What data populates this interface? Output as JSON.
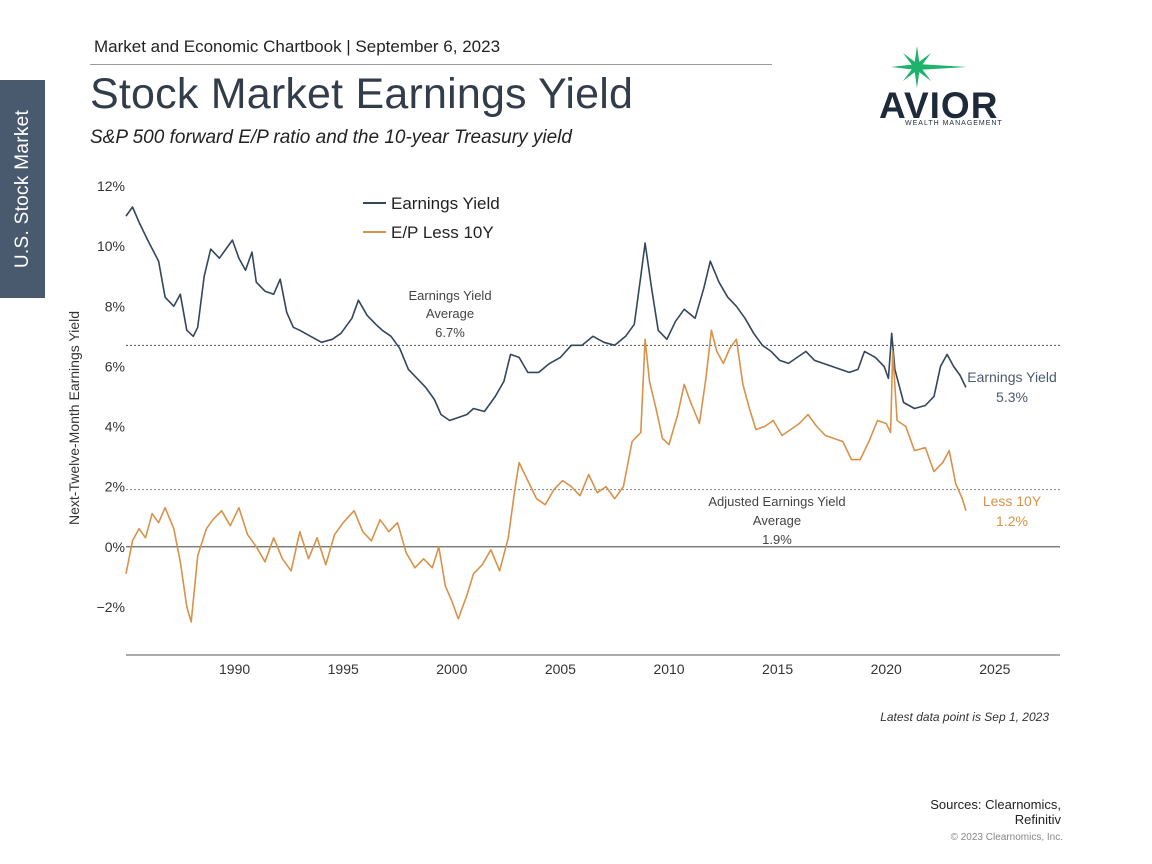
{
  "side_tab": "U.S. Stock Market",
  "header": "Market and Economic Chartbook | September 6, 2023",
  "title": "Stock Market Earnings Yield",
  "subtitle": "S&P 500 forward E/P ratio and the 10-year Treasury yield",
  "logo": {
    "word": "AVIOR",
    "sub": "WEALTH MANAGEMENT",
    "star_color": "#1db36a",
    "text_color": "#1e2a3a"
  },
  "colors": {
    "earnings_yield": "#34465a",
    "ep_less_10y": "#d8924a",
    "axis": "#555555"
  },
  "chart_data": {
    "type": "line",
    "ylabel": "Next-Twelve-Month Earnings Yield",
    "xlim": [
      1985,
      2028
    ],
    "ylim": [
      -3.6,
      12
    ],
    "x_ticks": [
      1990,
      1995,
      2000,
      2005,
      2010,
      2015,
      2020,
      2025
    ],
    "y_ticks": [
      {
        "value": 12,
        "label": "12%"
      },
      {
        "value": 10,
        "label": "10%"
      },
      {
        "value": 8,
        "label": "8%"
      },
      {
        "value": 6,
        "label": "6%"
      },
      {
        "value": 4,
        "label": "4%"
      },
      {
        "value": 2,
        "label": "2%"
      },
      {
        "value": 0,
        "label": "0%"
      },
      {
        "value": -2,
        "label": "−2%"
      }
    ],
    "legend": {
      "position": "top-left",
      "items": [
        "Earnings Yield",
        "E/P Less 10Y"
      ]
    },
    "reference_lines": [
      {
        "value": 6.7,
        "label_lines": [
          "Earnings Yield",
          "Average",
          "6.7%"
        ],
        "color": "#555555"
      },
      {
        "value": 1.9,
        "label_lines": [
          "Adjusted Earnings Yield",
          "Average",
          "1.9%"
        ],
        "color": "#888888"
      }
    ],
    "series": [
      {
        "name": "Earnings Yield",
        "end_label": [
          "Earnings Yield",
          "5.3%"
        ],
        "points": [
          [
            1985.0,
            11.0
          ],
          [
            1985.3,
            11.3
          ],
          [
            1985.6,
            10.8
          ],
          [
            1986.0,
            10.2
          ],
          [
            1986.5,
            9.5
          ],
          [
            1986.8,
            8.3
          ],
          [
            1987.2,
            8.0
          ],
          [
            1987.5,
            8.4
          ],
          [
            1987.8,
            7.2
          ],
          [
            1988.1,
            7.0
          ],
          [
            1988.3,
            7.3
          ],
          [
            1988.6,
            9.0
          ],
          [
            1988.9,
            9.9
          ],
          [
            1989.3,
            9.6
          ],
          [
            1989.6,
            9.9
          ],
          [
            1989.9,
            10.2
          ],
          [
            1990.2,
            9.6
          ],
          [
            1990.5,
            9.2
          ],
          [
            1990.8,
            9.8
          ],
          [
            1991.0,
            8.8
          ],
          [
            1991.4,
            8.5
          ],
          [
            1991.8,
            8.4
          ],
          [
            1992.1,
            8.9
          ],
          [
            1992.4,
            7.8
          ],
          [
            1992.7,
            7.3
          ],
          [
            1993.0,
            7.2
          ],
          [
            1993.5,
            7.0
          ],
          [
            1994.0,
            6.8
          ],
          [
            1994.5,
            6.9
          ],
          [
            1994.9,
            7.1
          ],
          [
            1995.4,
            7.6
          ],
          [
            1995.7,
            8.2
          ],
          [
            1996.1,
            7.7
          ],
          [
            1996.5,
            7.4
          ],
          [
            1996.8,
            7.2
          ],
          [
            1997.2,
            7.0
          ],
          [
            1997.6,
            6.6
          ],
          [
            1998.0,
            5.9
          ],
          [
            1998.4,
            5.6
          ],
          [
            1998.8,
            5.3
          ],
          [
            1999.2,
            4.9
          ],
          [
            1999.5,
            4.4
          ],
          [
            1999.9,
            4.2
          ],
          [
            2000.3,
            4.3
          ],
          [
            2000.7,
            4.4
          ],
          [
            2001.0,
            4.6
          ],
          [
            2001.5,
            4.5
          ],
          [
            2002.0,
            5.0
          ],
          [
            2002.4,
            5.5
          ],
          [
            2002.7,
            6.4
          ],
          [
            2003.1,
            6.3
          ],
          [
            2003.5,
            5.8
          ],
          [
            2004.0,
            5.8
          ],
          [
            2004.5,
            6.1
          ],
          [
            2005.0,
            6.3
          ],
          [
            2005.5,
            6.7
          ],
          [
            2006.0,
            6.7
          ],
          [
            2006.5,
            7.0
          ],
          [
            2007.0,
            6.8
          ],
          [
            2007.5,
            6.7
          ],
          [
            2008.0,
            7.0
          ],
          [
            2008.4,
            7.4
          ],
          [
            2008.7,
            9.0
          ],
          [
            2008.9,
            10.1
          ],
          [
            2009.2,
            8.6
          ],
          [
            2009.5,
            7.2
          ],
          [
            2009.9,
            6.9
          ],
          [
            2010.3,
            7.5
          ],
          [
            2010.7,
            7.9
          ],
          [
            2011.2,
            7.6
          ],
          [
            2011.6,
            8.6
          ],
          [
            2011.9,
            9.5
          ],
          [
            2012.3,
            8.8
          ],
          [
            2012.7,
            8.3
          ],
          [
            2013.1,
            8.0
          ],
          [
            2013.5,
            7.6
          ],
          [
            2013.9,
            7.1
          ],
          [
            2014.3,
            6.7
          ],
          [
            2014.7,
            6.5
          ],
          [
            2015.1,
            6.2
          ],
          [
            2015.5,
            6.1
          ],
          [
            2015.9,
            6.3
          ],
          [
            2016.3,
            6.5
          ],
          [
            2016.7,
            6.2
          ],
          [
            2017.1,
            6.1
          ],
          [
            2017.5,
            6.0
          ],
          [
            2017.9,
            5.9
          ],
          [
            2018.3,
            5.8
          ],
          [
            2018.7,
            5.9
          ],
          [
            2019.0,
            6.5
          ],
          [
            2019.5,
            6.3
          ],
          [
            2019.9,
            6.0
          ],
          [
            2020.1,
            5.6
          ],
          [
            2020.25,
            7.1
          ],
          [
            2020.4,
            5.9
          ],
          [
            2020.8,
            4.8
          ],
          [
            2021.3,
            4.6
          ],
          [
            2021.8,
            4.7
          ],
          [
            2022.2,
            5.0
          ],
          [
            2022.5,
            6.0
          ],
          [
            2022.8,
            6.4
          ],
          [
            2023.1,
            6.0
          ],
          [
            2023.4,
            5.7
          ],
          [
            2023.67,
            5.3
          ]
        ]
      },
      {
        "name": "E/P Less 10Y",
        "end_label": [
          "Less 10Y",
          "1.2%"
        ],
        "points": [
          [
            1985.0,
            -0.9
          ],
          [
            1985.3,
            0.2
          ],
          [
            1985.6,
            0.6
          ],
          [
            1985.9,
            0.3
          ],
          [
            1986.2,
            1.1
          ],
          [
            1986.5,
            0.8
          ],
          [
            1986.8,
            1.3
          ],
          [
            1987.2,
            0.6
          ],
          [
            1987.5,
            -0.5
          ],
          [
            1987.8,
            -2.0
          ],
          [
            1988.0,
            -2.5
          ],
          [
            1988.3,
            -0.3
          ],
          [
            1988.7,
            0.6
          ],
          [
            1989.0,
            0.9
          ],
          [
            1989.4,
            1.2
          ],
          [
            1989.8,
            0.7
          ],
          [
            1990.2,
            1.3
          ],
          [
            1990.6,
            0.4
          ],
          [
            1991.0,
            0.0
          ],
          [
            1991.4,
            -0.5
          ],
          [
            1991.8,
            0.3
          ],
          [
            1992.2,
            -0.4
          ],
          [
            1992.6,
            -0.8
          ],
          [
            1993.0,
            0.5
          ],
          [
            1993.4,
            -0.4
          ],
          [
            1993.8,
            0.3
          ],
          [
            1994.2,
            -0.6
          ],
          [
            1994.6,
            0.4
          ],
          [
            1995.0,
            0.8
          ],
          [
            1995.5,
            1.2
          ],
          [
            1995.9,
            0.5
          ],
          [
            1996.3,
            0.2
          ],
          [
            1996.7,
            0.9
          ],
          [
            1997.1,
            0.5
          ],
          [
            1997.5,
            0.8
          ],
          [
            1997.9,
            -0.2
          ],
          [
            1998.3,
            -0.7
          ],
          [
            1998.7,
            -0.4
          ],
          [
            1999.1,
            -0.7
          ],
          [
            1999.4,
            0.0
          ],
          [
            1999.7,
            -1.3
          ],
          [
            2000.0,
            -1.8
          ],
          [
            2000.3,
            -2.4
          ],
          [
            2000.7,
            -1.6
          ],
          [
            2001.0,
            -0.9
          ],
          [
            2001.4,
            -0.6
          ],
          [
            2001.8,
            -0.1
          ],
          [
            2002.2,
            -0.8
          ],
          [
            2002.6,
            0.3
          ],
          [
            2002.9,
            1.9
          ],
          [
            2003.1,
            2.8
          ],
          [
            2003.5,
            2.2
          ],
          [
            2003.9,
            1.6
          ],
          [
            2004.3,
            1.4
          ],
          [
            2004.7,
            1.9
          ],
          [
            2005.1,
            2.2
          ],
          [
            2005.5,
            2.0
          ],
          [
            2005.9,
            1.7
          ],
          [
            2006.3,
            2.4
          ],
          [
            2006.7,
            1.8
          ],
          [
            2007.1,
            2.0
          ],
          [
            2007.5,
            1.6
          ],
          [
            2007.9,
            2.0
          ],
          [
            2008.3,
            3.5
          ],
          [
            2008.7,
            3.8
          ],
          [
            2008.9,
            6.9
          ],
          [
            2009.1,
            5.5
          ],
          [
            2009.4,
            4.6
          ],
          [
            2009.7,
            3.6
          ],
          [
            2010.0,
            3.4
          ],
          [
            2010.4,
            4.4
          ],
          [
            2010.7,
            5.4
          ],
          [
            2011.0,
            4.8
          ],
          [
            2011.4,
            4.1
          ],
          [
            2011.7,
            5.6
          ],
          [
            2011.95,
            7.2
          ],
          [
            2012.2,
            6.5
          ],
          [
            2012.5,
            6.1
          ],
          [
            2012.8,
            6.6
          ],
          [
            2013.1,
            6.9
          ],
          [
            2013.4,
            5.4
          ],
          [
            2013.7,
            4.6
          ],
          [
            2014.0,
            3.9
          ],
          [
            2014.4,
            4.0
          ],
          [
            2014.8,
            4.2
          ],
          [
            2015.2,
            3.7
          ],
          [
            2015.6,
            3.9
          ],
          [
            2016.0,
            4.1
          ],
          [
            2016.4,
            4.4
          ],
          [
            2016.8,
            4.0
          ],
          [
            2017.2,
            3.7
          ],
          [
            2017.6,
            3.6
          ],
          [
            2018.0,
            3.5
          ],
          [
            2018.4,
            2.9
          ],
          [
            2018.8,
            2.9
          ],
          [
            2019.2,
            3.5
          ],
          [
            2019.6,
            4.2
          ],
          [
            2020.0,
            4.1
          ],
          [
            2020.2,
            3.8
          ],
          [
            2020.3,
            6.5
          ],
          [
            2020.5,
            4.2
          ],
          [
            2020.9,
            4.0
          ],
          [
            2021.3,
            3.2
          ],
          [
            2021.8,
            3.3
          ],
          [
            2022.2,
            2.5
          ],
          [
            2022.6,
            2.8
          ],
          [
            2022.9,
            3.2
          ],
          [
            2023.2,
            2.1
          ],
          [
            2023.5,
            1.6
          ],
          [
            2023.67,
            1.2
          ]
        ]
      }
    ]
  },
  "footnote": "Latest data point is Sep 1, 2023",
  "sources": [
    "Sources: Clearnomics,",
    "Refinitiv"
  ],
  "copyright": "© 2023 Clearnomics, Inc."
}
